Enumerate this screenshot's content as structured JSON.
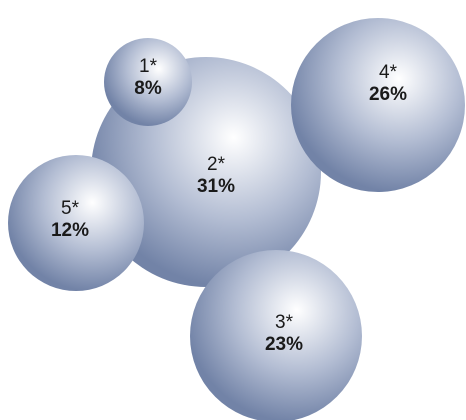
{
  "chart_data": {
    "type": "bubble",
    "title": "",
    "bubbles": [
      {
        "label": "1*",
        "value": 8,
        "value_text": "8%"
      },
      {
        "label": "2*",
        "value": 31,
        "value_text": "31%"
      },
      {
        "label": "3*",
        "value": 23,
        "value_text": "23%"
      },
      {
        "label": "4*",
        "value": 26,
        "value_text": "26%"
      },
      {
        "label": "5*",
        "value": 12,
        "value_text": "12%"
      }
    ],
    "colors": {
      "highlight": "#ffffff",
      "mid": "#b3bdd3",
      "edge": "#7283a7"
    }
  }
}
